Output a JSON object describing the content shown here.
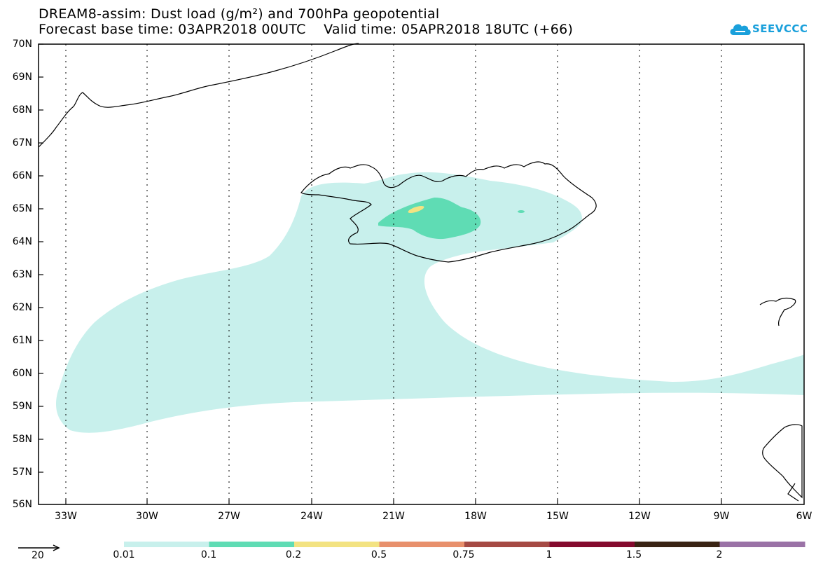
{
  "title": {
    "line1": "DREAM8-assim: Dust load (g/m²) and 700hPa geopotential",
    "line2": "Forecast base time: 03APR2018 00UTC    Valid time: 05APR2018 18UTC (+66)"
  },
  "logo": {
    "text": "SEEVCCC",
    "icon": "cloud-icon",
    "color": "#1aa0db"
  },
  "map": {
    "lat_labels": [
      "70N",
      "69N",
      "68N",
      "67N",
      "66N",
      "65N",
      "64N",
      "63N",
      "62N",
      "61N",
      "60N",
      "59N",
      "58N",
      "57N",
      "56N"
    ],
    "lon_labels": [
      "33W",
      "30W",
      "27W",
      "24W",
      "21W",
      "18W",
      "15W",
      "12W",
      "9W",
      "6W"
    ],
    "grid": true
  },
  "legend": {
    "vector_label": "20",
    "levels": [
      "0.01",
      "0.1",
      "0.2",
      "0.5",
      "0.75",
      "1",
      "1.5",
      "2"
    ],
    "colors": [
      "#c8f0ec",
      "#5fdcb4",
      "#f3e382",
      "#e8906c",
      "#a54a44",
      "#840a2e",
      "#3a2414",
      "#9a72a6"
    ]
  }
}
